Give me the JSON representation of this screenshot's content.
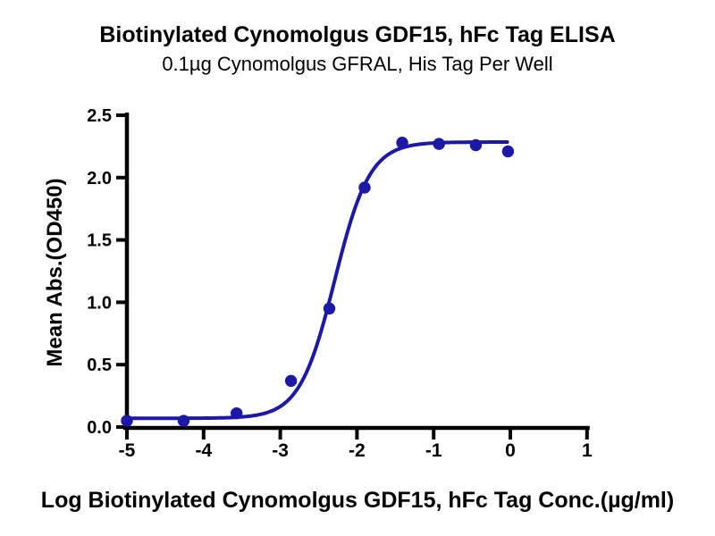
{
  "header": {
    "title": "Biotinylated Cynomolgus GDF15, hFc Tag ELISA",
    "subtitle": "0.1µg Cynomolgus GFRAL, His Tag Per Well"
  },
  "chart_data": {
    "type": "scatter",
    "title": "Biotinylated Cynomolgus GDF15, hFc Tag ELISA",
    "subtitle": "0.1µg Cynomolgus GFRAL, His Tag Per Well",
    "xlabel": "Log Biotinylated Cynomolgus GDF15, hFc Tag Conc.(µg/ml)",
    "ylabel": "Mean Abs.(OD450)",
    "xlim": [
      -5,
      1
    ],
    "ylim": [
      0,
      2.5
    ],
    "x_ticks": [
      "-5",
      "-4",
      "-3",
      "-2",
      "-1",
      "0",
      "1"
    ],
    "y_ticks": [
      "0.0",
      "0.5",
      "1.0",
      "1.5",
      "2.0",
      "2.5"
    ],
    "grid": false,
    "legend_position": "none",
    "axis_color": "#000000",
    "point_color": "#1C18A8",
    "curve_color": "#1C18A8",
    "series": [
      {
        "name": "Biotinylated Cynomolgus GDF15, hFc Tag",
        "marker": "circle",
        "points": [
          {
            "x": -5.0,
            "y": 0.05
          },
          {
            "x": -4.26,
            "y": 0.05
          },
          {
            "x": -3.57,
            "y": 0.11
          },
          {
            "x": -2.86,
            "y": 0.37
          },
          {
            "x": -2.36,
            "y": 0.95
          },
          {
            "x": -1.9,
            "y": 1.92
          },
          {
            "x": -1.41,
            "y": 2.28
          },
          {
            "x": -0.93,
            "y": 2.27
          },
          {
            "x": -0.45,
            "y": 2.26
          },
          {
            "x": -0.03,
            "y": 2.21
          }
        ],
        "fit_4pl": {
          "bottom": 0.07,
          "top": 2.285,
          "log_ec50": -2.29,
          "hill": 1.9,
          "x_start": -5.0,
          "x_end": -0.04
        }
      }
    ]
  }
}
